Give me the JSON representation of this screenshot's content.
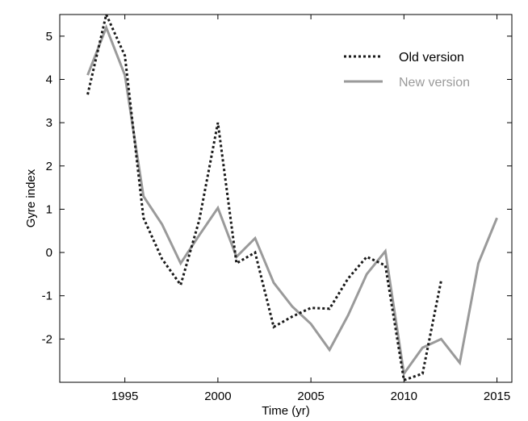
{
  "chart_data": {
    "type": "line",
    "xlabel": "Time (yr)",
    "ylabel": "Gyre index",
    "xlim": [
      1991.5,
      2015.8
    ],
    "ylim": [
      -3,
      5.5
    ],
    "xticks": [
      1995,
      2000,
      2005,
      2010,
      2015
    ],
    "yticks": [
      -2,
      -1,
      0,
      1,
      2,
      3,
      4,
      5
    ],
    "grid": false,
    "legend_position": "top-right",
    "series": [
      {
        "name": "Old version",
        "color": "#1a1a1a",
        "style": "dotted",
        "x": [
          1993,
          1994,
          1995,
          1996,
          1997,
          1998,
          1999,
          2000,
          2001,
          2002,
          2003,
          2004,
          2005,
          2006,
          2007,
          2008,
          2009,
          2010,
          2011,
          2012
        ],
        "y": [
          3.65,
          5.5,
          4.55,
          0.8,
          -0.15,
          -0.75,
          0.75,
          3.0,
          -0.25,
          0.0,
          -1.72,
          -1.48,
          -1.28,
          -1.3,
          -0.6,
          -0.1,
          -0.3,
          -2.95,
          -2.8,
          -0.65
        ]
      },
      {
        "name": "New version",
        "color": "#9a9a9a",
        "style": "solid",
        "x": [
          1993,
          1994,
          1995,
          1996,
          1997,
          1998,
          1999,
          2000,
          2001,
          2002,
          2003,
          2004,
          2005,
          2006,
          2007,
          2008,
          2009,
          2010,
          2011,
          2012,
          2013,
          2014,
          2015
        ],
        "y": [
          4.1,
          5.2,
          4.1,
          1.3,
          0.65,
          -0.25,
          0.4,
          1.03,
          -0.1,
          0.33,
          -0.7,
          -1.25,
          -1.65,
          -2.25,
          -1.45,
          -0.5,
          0.03,
          -2.8,
          -2.2,
          -2.0,
          -2.55,
          -0.25,
          0.8
        ]
      }
    ]
  }
}
